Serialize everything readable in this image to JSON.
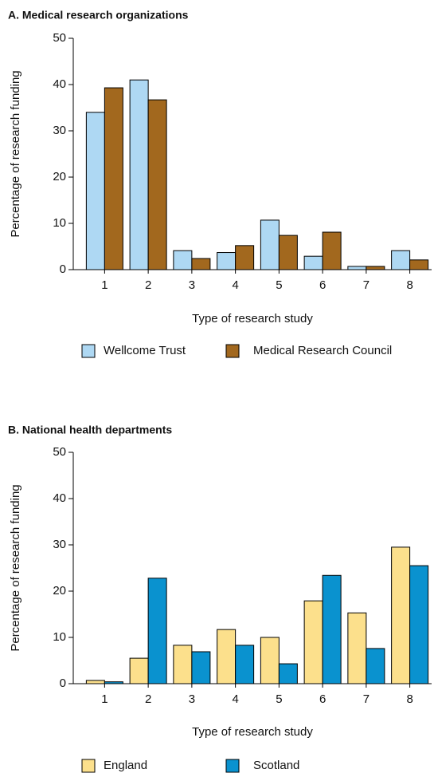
{
  "chart_data": [
    {
      "type": "bar",
      "title": "A. Medical research organizations",
      "x_label": "Type of research study",
      "y_label": "Percentage of research funding",
      "categories": [
        "1",
        "2",
        "3",
        "4",
        "5",
        "6",
        "7",
        "8"
      ],
      "series": [
        {
          "name": "Wellcome Trust",
          "color": "#aed8f3",
          "values": [
            34,
            41,
            4.1,
            3.7,
            10.7,
            2.9,
            0.7,
            4.1
          ]
        },
        {
          "name": "Medical Research Council",
          "color": "#a2681e",
          "values": [
            39.3,
            36.7,
            2.4,
            5.2,
            7.4,
            8.1,
            0.7,
            2.1
          ]
        }
      ],
      "ylim": [
        0,
        50
      ],
      "yticks": [
        0,
        10,
        20,
        30,
        40,
        50
      ]
    },
    {
      "type": "bar",
      "title": "B. National health departments",
      "x_label": "Type of research study",
      "y_label": "Percentage of research funding",
      "categories": [
        "1",
        "2",
        "3",
        "4",
        "5",
        "6",
        "7",
        "8"
      ],
      "series": [
        {
          "name": "England",
          "color": "#fce08c",
          "values": [
            0.7,
            5.5,
            8.3,
            11.7,
            10,
            17.9,
            15.3,
            29.5
          ]
        },
        {
          "name": "Scotland",
          "color": "#0a92cf",
          "values": [
            0.4,
            22.8,
            6.9,
            8.3,
            4.3,
            23.4,
            7.6,
            25.5
          ]
        }
      ],
      "ylim": [
        0,
        50
      ],
      "yticks": [
        0,
        10,
        20,
        30,
        40,
        50
      ]
    }
  ]
}
